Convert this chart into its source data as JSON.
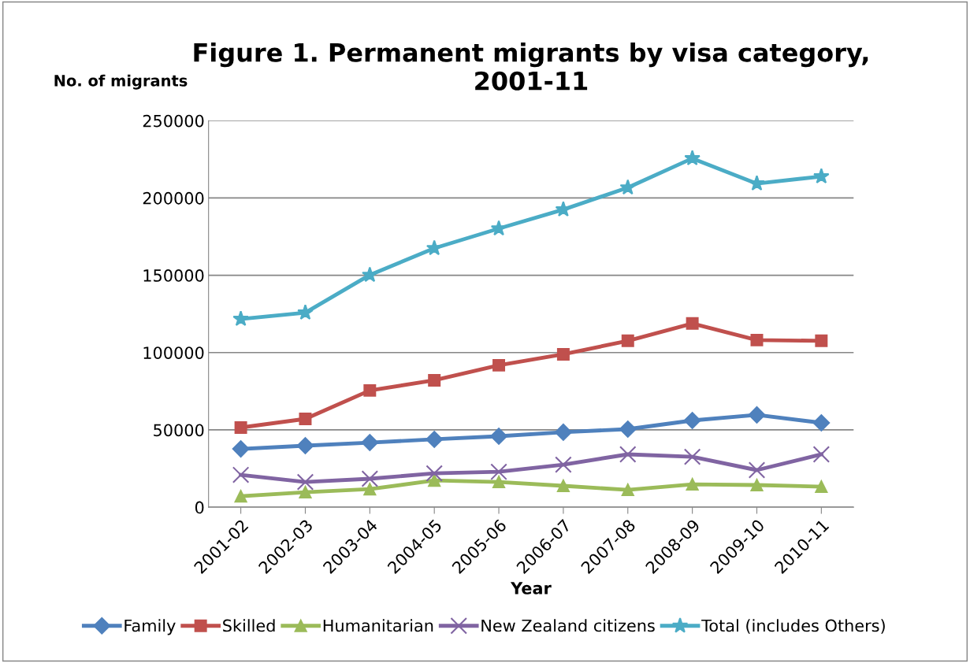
{
  "chart_data": {
    "type": "line",
    "title": "Figure 1. Permanent migrants by visa category,\n2001-11",
    "ylabel": "No. of migrants",
    "xlabel": "Year",
    "categories": [
      "2001-02",
      "2002-03",
      "2003-04",
      "2004-05",
      "2005-06",
      "2006-07",
      "2007-08",
      "2008-09",
      "2009-10",
      "2010-11"
    ],
    "series": [
      {
        "name": "Family",
        "color": "#4f81bd",
        "marker": "diamond",
        "values": [
          37700,
          39800,
          41800,
          43900,
          45900,
          48500,
          50500,
          56100,
          59700,
          54600
        ]
      },
      {
        "name": "Skilled",
        "color": "#c0504d",
        "marker": "square",
        "values": [
          51500,
          57100,
          75500,
          82100,
          91800,
          98900,
          107600,
          118800,
          108100,
          107600
        ]
      },
      {
        "name": "Humanitarian",
        "color": "#9bbb59",
        "marker": "triangle",
        "values": [
          7100,
          9700,
          11700,
          17300,
          16300,
          13800,
          11200,
          14800,
          14300,
          13300
        ]
      },
      {
        "name": "New Zealand citizens",
        "color": "#8064a2",
        "marker": "cross",
        "values": [
          20900,
          16300,
          18400,
          21900,
          22900,
          27500,
          34200,
          32600,
          24000,
          34200
        ]
      },
      {
        "name": "Total (includes Others)",
        "color": "#4bacc6",
        "marker": "star",
        "values": [
          121700,
          125800,
          150200,
          167500,
          180200,
          192500,
          206700,
          225600,
          209300,
          213900
        ]
      }
    ],
    "ylim": [
      0,
      250000
    ],
    "yticks": [
      0,
      50000,
      100000,
      150000,
      200000,
      250000
    ],
    "grid": "y",
    "legend": "bottom"
  }
}
